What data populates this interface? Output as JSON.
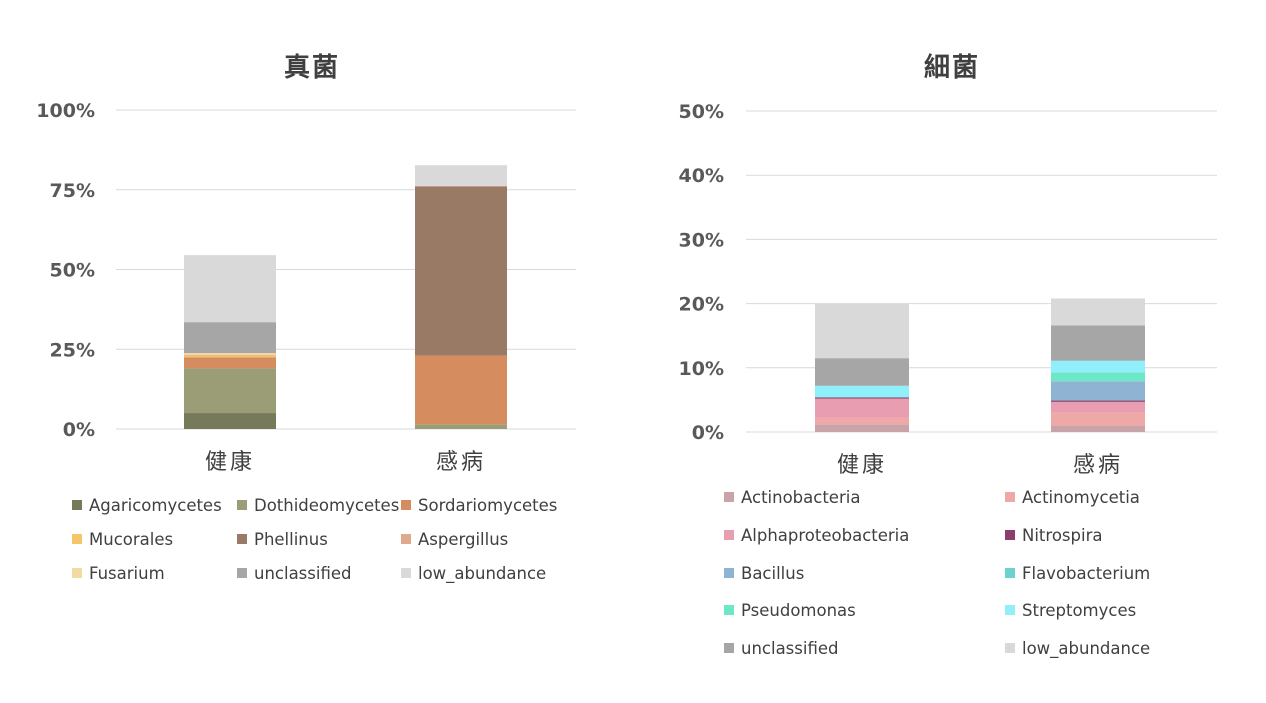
{
  "chart_data": [
    {
      "type": "bar",
      "stacked": true,
      "title": "真菌",
      "categories": [
        "健康",
        "感病"
      ],
      "ylim": [
        0,
        1.0
      ],
      "yticks": [
        "0%",
        "25%",
        "50%",
        "75%",
        "100%"
      ],
      "yticks_values": [
        0,
        0.25,
        0.5,
        0.75,
        1.0
      ],
      "grid": true,
      "legend_position": "bottom",
      "series": [
        {
          "name": "Agaricomycetes",
          "color": "#76795a",
          "values": [
            0.05,
            0.0
          ]
        },
        {
          "name": "Dothideomycetes",
          "color": "#9b9d77",
          "values": [
            0.14,
            0.015
          ]
        },
        {
          "name": "Sordariomycetes",
          "color": "#d58c5e",
          "values": [
            0.035,
            0.215
          ]
        },
        {
          "name": "Mucorales",
          "color": "#f5c669",
          "values": [
            0.005,
            0.0
          ]
        },
        {
          "name": "Phellinus",
          "color": "#997a64",
          "values": [
            0.0,
            0.53
          ]
        },
        {
          "name": "Aspergillus",
          "color": "#dfa98c",
          "values": [
            0.002,
            0.002
          ]
        },
        {
          "name": "Fusarium",
          "color": "#f3d9a3",
          "values": [
            0.006,
            0.0
          ]
        },
        {
          "name": "unclassified",
          "color": "#a6a6a6",
          "values": [
            0.097,
            0.0
          ]
        },
        {
          "name": "low_abundance",
          "color": "#d9d9d9",
          "values": [
            0.21,
            0.065
          ]
        }
      ]
    },
    {
      "type": "bar",
      "stacked": true,
      "title": "細菌",
      "categories": [
        "健康",
        "感病"
      ],
      "ylim": [
        0,
        0.5
      ],
      "yticks": [
        "0%",
        "10%",
        "20%",
        "30%",
        "40%",
        "50%"
      ],
      "yticks_values": [
        0,
        0.1,
        0.2,
        0.3,
        0.4,
        0.5
      ],
      "grid": true,
      "legend_position": "bottom",
      "series": [
        {
          "name": "Actinobacteria",
          "color": "#c8a4a8",
          "values": [
            0.012,
            0.01
          ]
        },
        {
          "name": "Actinomycetia",
          "color": "#eea8a6",
          "values": [
            0.01,
            0.02
          ]
        },
        {
          "name": "Alphaproteobacteria",
          "color": "#e99db0",
          "values": [
            0.03,
            0.017
          ]
        },
        {
          "name": "Nitrospira",
          "color": "#8b3e6e",
          "values": [
            0.002,
            0.002
          ]
        },
        {
          "name": "Bacillus",
          "color": "#8fb4d3",
          "values": [
            0.0,
            0.03
          ]
        },
        {
          "name": "Flavobacterium",
          "color": "#6ad3cf",
          "values": [
            0.0,
            0.0
          ]
        },
        {
          "name": "Pseudomonas",
          "color": "#6ce8c6",
          "values": [
            0.0,
            0.014
          ]
        },
        {
          "name": "Streptomyces",
          "color": "#8ff0fb",
          "values": [
            0.018,
            0.018
          ]
        },
        {
          "name": "unclassified",
          "color": "#a6a6a6",
          "values": [
            0.043,
            0.055
          ]
        },
        {
          "name": "low_abundance",
          "color": "#d9d9d9",
          "values": [
            0.085,
            0.042
          ]
        }
      ]
    }
  ]
}
